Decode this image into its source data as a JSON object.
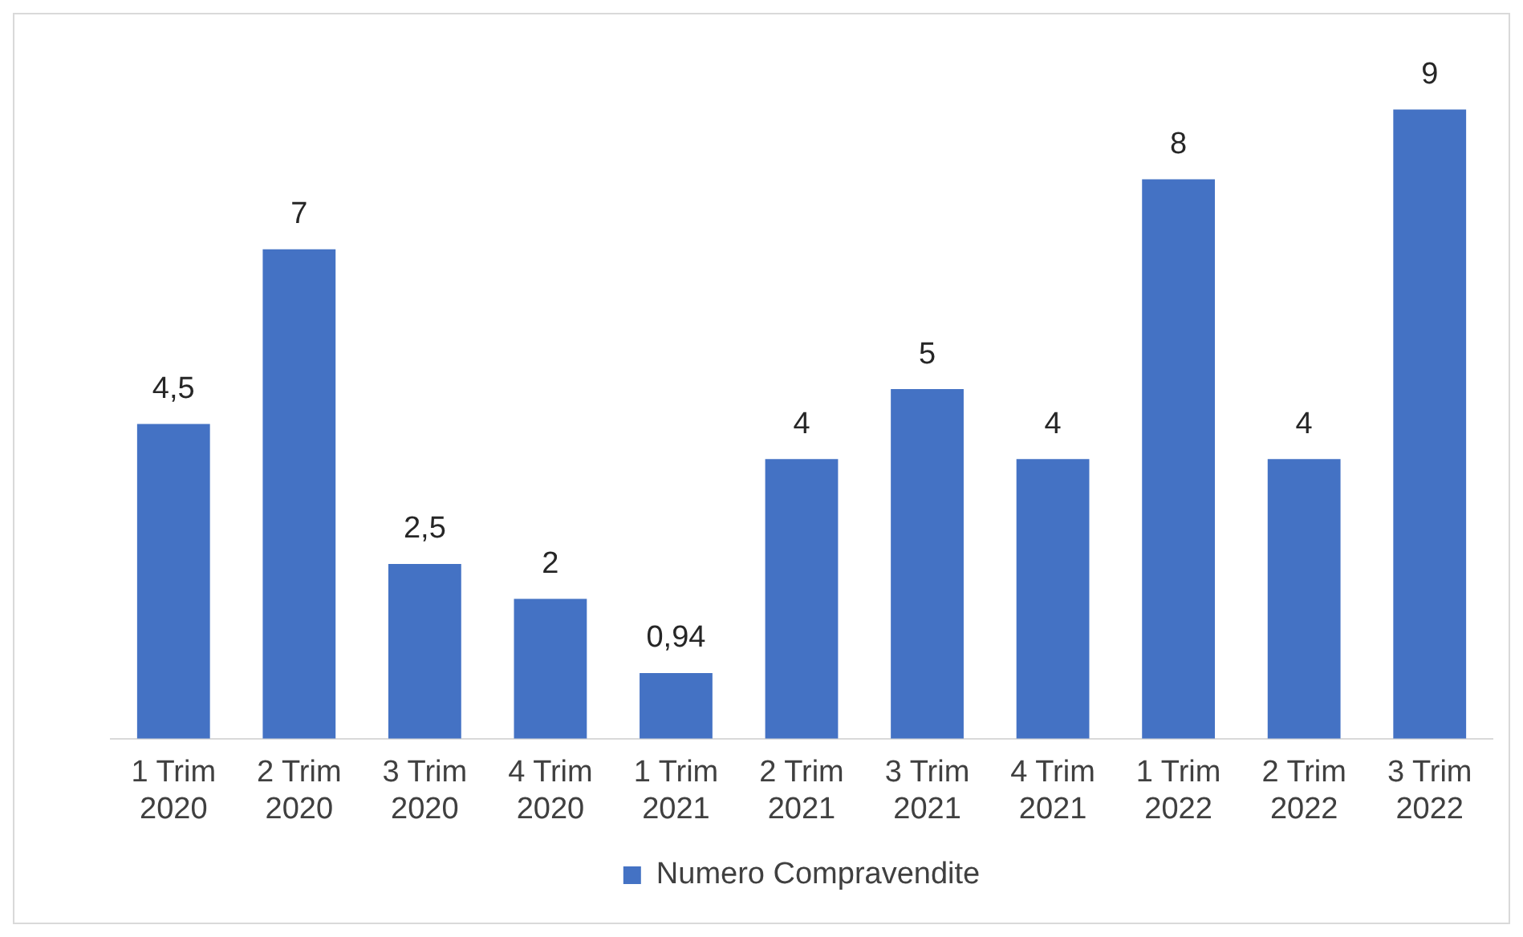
{
  "chart_data": {
    "type": "bar",
    "categories": [
      "1 Trim 2020",
      "2 Trim 2020",
      "3 Trim 2020",
      "4 Trim 2020",
      "1 Trim 2021",
      "2 Trim 2021",
      "3 Trim 2021",
      "4 Trim 2021",
      "1 Trim 2022",
      "2 Trim 2022",
      "3 Trim 2022"
    ],
    "series": [
      {
        "name": "Numero Compravendite",
        "color": "#4472c4",
        "values": [
          4.5,
          7,
          2.5,
          2,
          0.94,
          4,
          5,
          4,
          8,
          4,
          9
        ],
        "value_labels": [
          "4,5",
          "7",
          "2,5",
          "2",
          "0,94",
          "4",
          "5",
          "4",
          "8",
          "4",
          "9"
        ]
      }
    ],
    "legend": "bottom",
    "grid": false
  }
}
